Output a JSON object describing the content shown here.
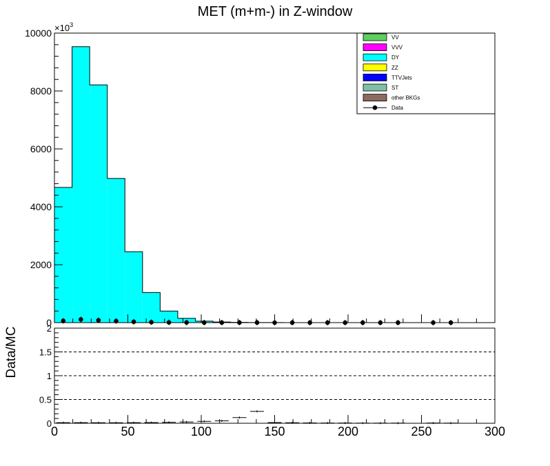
{
  "title": "MET (m+m-) in Z-window",
  "ylabel_lower": "Data/MC",
  "exponent_label": "×10",
  "exponent_power": "3",
  "legend": [
    {
      "name": "VV",
      "color": "#5dd05d",
      "marker": false
    },
    {
      "name": "VVV",
      "color": "#ff00ff",
      "marker": false
    },
    {
      "name": "DY",
      "color": "#00ffff",
      "marker": false
    },
    {
      "name": "ZZ",
      "color": "#ffff00",
      "marker": false
    },
    {
      "name": "TTVJets",
      "color": "#0000ff",
      "marker": false
    },
    {
      "name": "ST",
      "color": "#7fbfa5",
      "marker": false
    },
    {
      "name": "other BKGs",
      "color": "#8c6a5f",
      "marker": false
    },
    {
      "name": "Data",
      "color": "#000000",
      "marker": true
    }
  ],
  "chart_data": [
    {
      "type": "bar",
      "title": "MET (m+m-) in Z-window",
      "xlim": [
        0,
        300
      ],
      "ylim": [
        0,
        10000
      ],
      "ylabel_multiplier": "×10^3",
      "xticks": [
        "0",
        "50",
        "100",
        "150",
        "200",
        "250",
        "300"
      ],
      "yticks": [
        "0",
        "2000",
        "4000",
        "6000",
        "8000",
        "10000"
      ],
      "bin_edges": [
        0,
        12,
        24,
        36,
        48,
        60,
        72,
        84,
        96,
        108,
        120,
        132,
        144,
        156,
        168,
        180,
        192,
        204,
        216,
        228,
        240,
        252,
        264,
        276,
        288,
        300
      ],
      "series": [
        {
          "name": "DY",
          "color": "#00ffff",
          "values": [
            4670,
            9530,
            8210,
            4980,
            2450,
            1040,
            400,
            150,
            50,
            20,
            8,
            4,
            2,
            1,
            0,
            0,
            0,
            0,
            0,
            0,
            0,
            0,
            0,
            0,
            0
          ]
        },
        {
          "name": "Data",
          "type": "points",
          "color": "#000000",
          "x": [
            6,
            18,
            30,
            42,
            54,
            66,
            78,
            90,
            102,
            114,
            126,
            138,
            150,
            162,
            174,
            186,
            198,
            210,
            222,
            234,
            258,
            270
          ],
          "values": [
            60,
            110,
            80,
            55,
            30,
            15,
            8,
            4,
            2,
            1,
            1,
            1,
            0,
            0,
            0,
            0,
            0,
            0,
            0,
            0,
            0,
            0
          ]
        }
      ],
      "legend_position": "top-right"
    },
    {
      "type": "scatter",
      "ylabel": "Data/MC",
      "xlim": [
        0,
        300
      ],
      "ylim": [
        0,
        2
      ],
      "xticks": [
        "0",
        "50",
        "100",
        "150",
        "200",
        "250",
        "300"
      ],
      "yticks": [
        "0",
        "0.5",
        "1",
        "1.5",
        "2"
      ],
      "reference_lines": [
        0.5,
        1,
        1.5
      ],
      "series": [
        {
          "name": "ratio",
          "x": [
            6,
            18,
            30,
            42,
            54,
            66,
            78,
            90,
            102,
            114,
            126,
            138,
            150,
            162,
            174,
            186,
            198,
            210,
            222,
            234,
            258,
            270
          ],
          "values": [
            0.013,
            0.012,
            0.01,
            0.011,
            0.012,
            0.014,
            0.02,
            0.027,
            0.04,
            0.05,
            0.12,
            0.25,
            0.015,
            0.01,
            0.008,
            0.006,
            0.006,
            0.004,
            0.003,
            0.003,
            0.005,
            0.004
          ]
        }
      ]
    }
  ]
}
